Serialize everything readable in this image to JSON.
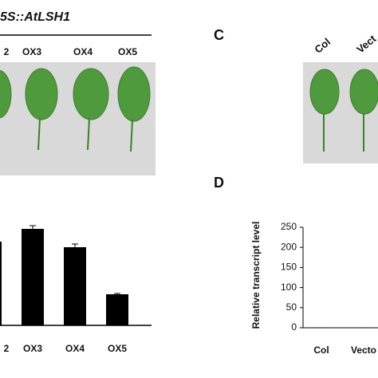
{
  "panel_a": {
    "construct": "5S::AtLSH1",
    "labels": [
      "2",
      "OX3",
      "OX4",
      "OX5"
    ]
  },
  "panel_c": {
    "label": "C",
    "labels": [
      "Col",
      "Vect"
    ]
  },
  "chart_data": [
    {
      "type": "bar",
      "categories": [
        "2",
        "OX3",
        "OX4",
        "OX5"
      ],
      "values": [
        105,
        121,
        98,
        39
      ],
      "errors": [
        3,
        4,
        4,
        1
      ],
      "color": "#000000",
      "ylim": [
        0,
        130
      ]
    },
    {
      "type": "bar",
      "panel_label": "D",
      "y_label": "Relative transcript level",
      "categories": [
        "Col",
        "Vecto"
      ],
      "values": [
        1,
        1
      ],
      "color": "#000000",
      "ylim": [
        0,
        250
      ],
      "yticks": [
        0,
        50,
        100,
        150,
        200,
        250
      ]
    }
  ]
}
